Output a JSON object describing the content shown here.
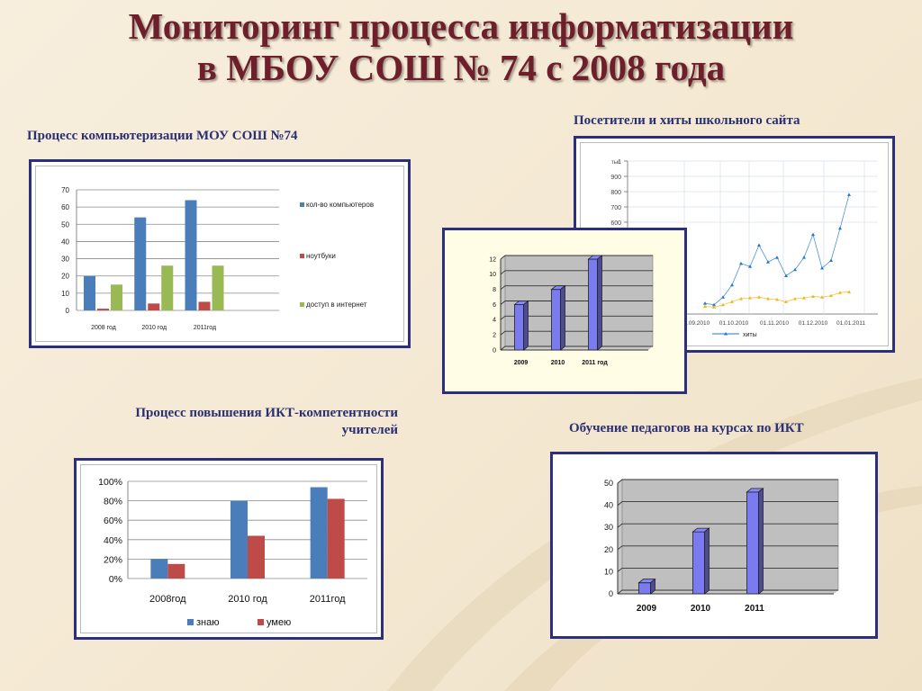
{
  "slide": {
    "title_line1": "Мониторинг процесса информатизации",
    "title_line2": "в МБОУ СОШ № 74  с 2008 года",
    "captions": {
      "computers": "Процесс компьютеризации МОУ СОШ №74",
      "site": "Посетители и хиты школьного сайта",
      "ict_line1": "Процесс повышения ИКТ-компетентности",
      "ict_line2": "учителей",
      "courses": "Обучение педагогов на курсах по ИКТ"
    }
  },
  "chart_data": [
    {
      "id": "computers",
      "type": "bar",
      "categories": [
        "2008 год",
        "2010 год",
        "2011год"
      ],
      "series": [
        {
          "name": "кол-во компьютеров",
          "values": [
            20,
            54,
            64
          ],
          "color": "#4a7ebb"
        },
        {
          "name": "ноутбуки",
          "values": [
            1,
            4,
            5
          ],
          "color": "#be4b48"
        },
        {
          "name": "доступ в интернет",
          "values": [
            15,
            26,
            26
          ],
          "color": "#98b954"
        }
      ],
      "ylim": [
        0,
        70
      ],
      "yticks": [
        0,
        10,
        20,
        30,
        40,
        50,
        60,
        70
      ],
      "grid": true,
      "legend": "right"
    },
    {
      "id": "site",
      "type": "line",
      "y_unit_label": "тыс",
      "yticks": [
        "1",
        "900",
        "800",
        "700",
        "600"
      ],
      "x_tick_labels": [
        "01.09.2010",
        "01.10.2010",
        "01.11.2010",
        "01.12.2010",
        "01.01.2011"
      ],
      "series": [
        {
          "name": "хиты",
          "values": [
            70,
            60,
            110,
            190,
            330,
            310,
            450,
            340,
            370,
            250,
            290,
            370,
            520,
            300,
            350,
            560,
            780
          ],
          "color": "#1f77c9"
        },
        {
          "name": "",
          "values": [
            50,
            45,
            60,
            80,
            100,
            105,
            110,
            100,
            95,
            80,
            100,
            105,
            115,
            110,
            120,
            140,
            145
          ],
          "color": "#f2b61a"
        }
      ],
      "ylim": [
        0,
        1000
      ],
      "grid": true,
      "legend": "bottom"
    },
    {
      "id": "site-overlay",
      "type": "bar",
      "categories": [
        "2009",
        "2010",
        "2011 год"
      ],
      "values": [
        6,
        8,
        12
      ],
      "ylim": [
        0,
        12
      ],
      "yticks": [
        0,
        2,
        4,
        6,
        8,
        10,
        12
      ],
      "color": "#7b7bf0",
      "grid": true
    },
    {
      "id": "ict",
      "type": "bar",
      "categories": [
        "2008год",
        "2010 год",
        "2011год"
      ],
      "series": [
        {
          "name": "знаю",
          "values": [
            20,
            80,
            94
          ],
          "color": "#4a7ebb"
        },
        {
          "name": "умею",
          "values": [
            15,
            44,
            82
          ],
          "color": "#be4b48"
        }
      ],
      "ylim": [
        0,
        100
      ],
      "yticks": [
        "0%",
        "20%",
        "40%",
        "60%",
        "80%",
        "100%"
      ],
      "grid": true,
      "legend": "bottom"
    },
    {
      "id": "courses",
      "type": "bar",
      "categories": [
        "2009",
        "2010",
        "2011"
      ],
      "values": [
        5,
        28,
        46
      ],
      "ylim": [
        0,
        50
      ],
      "yticks": [
        0,
        10,
        20,
        30,
        40,
        50
      ],
      "color": "#7b7bf0",
      "grid": true
    }
  ]
}
